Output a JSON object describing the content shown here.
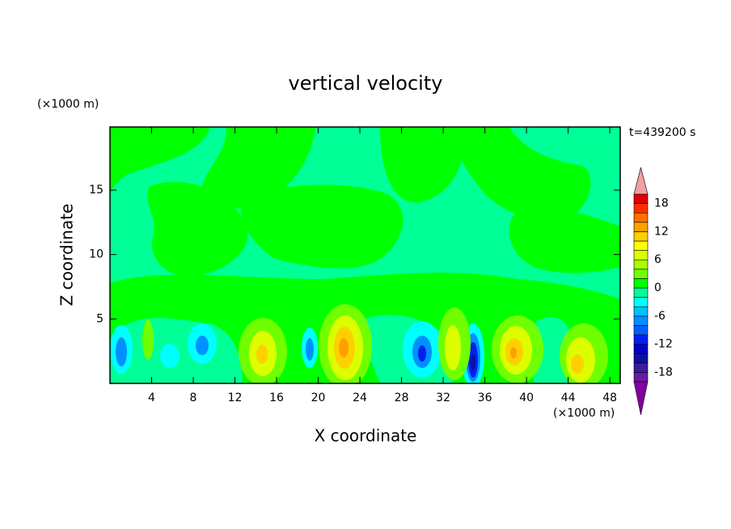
{
  "chart_data": {
    "type": "contour",
    "title": "vertical velocity",
    "x_label": "X coordinate",
    "y_label": "Z coordinate",
    "x_unit": "(×1000 m)",
    "y_unit": "(×1000 m)",
    "annotation": "t=439200 s",
    "xlim": [
      0,
      49
    ],
    "xticks": [
      4,
      8,
      12,
      16,
      20,
      24,
      28,
      32,
      36,
      40,
      44,
      48
    ],
    "ylim": [
      0,
      19.9
    ],
    "yticks": [
      5,
      10,
      15
    ],
    "levels": [
      -20,
      -18,
      -16,
      -14,
      -12,
      -10,
      -8,
      -6,
      -4,
      -2,
      0,
      2,
      4,
      6,
      8,
      10,
      12,
      14,
      16,
      18,
      20
    ],
    "colors": [
      "#6a1aa0",
      "#3c1aa0",
      "#1010a0",
      "#0000c8",
      "#0020f0",
      "#0060ff",
      "#0090ff",
      "#00c0ff",
      "#00ffff",
      "#00ff96",
      "#00ff00",
      "#70ff00",
      "#a8ff00",
      "#dcff00",
      "#ffff00",
      "#ffd000",
      "#ffa000",
      "#ff7000",
      "#ff3000",
      "#e00000"
    ],
    "extend_colors": [
      "#8000a0",
      "#f0a0a0"
    ],
    "colorbar_ticks": [
      -18,
      -12,
      -6,
      0,
      6,
      12,
      18
    ]
  }
}
